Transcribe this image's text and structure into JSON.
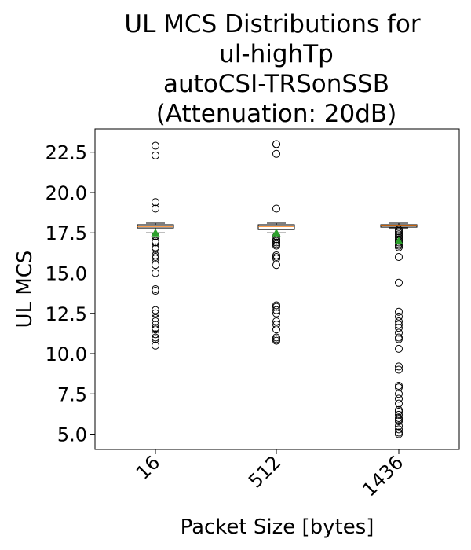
{
  "chart_data": {
    "type": "boxplot",
    "title_lines": [
      "UL MCS Distributions for",
      "ul-highTp",
      "autoCSI-TRSonSSB",
      "(Attenuation: 20dB)"
    ],
    "xlabel": "Packet Size [bytes]",
    "ylabel": "UL MCS",
    "ylim": [
      4.05,
      23.95
    ],
    "yticks": [
      5.0,
      7.5,
      10.0,
      12.5,
      15.0,
      17.5,
      20.0,
      22.5
    ],
    "ytick_labels": [
      "5.0",
      "7.5",
      "10.0",
      "12.5",
      "15.0",
      "17.5",
      "20.0",
      "22.5"
    ],
    "grid": false,
    "colors": {
      "median": "#ff7f0e",
      "mean": "#2ca02c",
      "box": "#000000"
    },
    "categories": [
      "16",
      "512",
      "1436"
    ],
    "boxes": [
      {
        "category": "16",
        "whisker_low": 17.5,
        "q1": 17.8,
        "median": 17.9,
        "q3": 18.0,
        "whisker_high": 18.1,
        "mean": 17.5,
        "outliers": [
          22.9,
          22.3,
          19.4,
          19.0,
          17.3,
          17.0,
          16.9,
          16.6,
          16.5,
          16.1,
          16.0,
          15.9,
          15.5,
          15.0,
          14.0,
          13.9,
          12.7,
          12.5,
          12.2,
          12.0,
          11.8,
          11.6,
          11.5,
          11.2,
          11.0,
          10.9,
          10.5
        ]
      },
      {
        "category": "512",
        "whisker_low": 17.5,
        "q1": 17.7,
        "median": 17.9,
        "q3": 18.0,
        "whisker_high": 18.1,
        "mean": 17.5,
        "outliers": [
          23.0,
          23.0,
          22.4,
          19.0,
          17.3,
          17.1,
          17.0,
          16.9,
          16.8,
          16.7,
          16.1,
          16.0,
          15.9,
          15.5,
          13.0,
          12.9,
          12.7,
          12.5,
          12.0,
          11.8,
          11.5,
          11.0,
          10.9,
          10.8
        ]
      },
      {
        "category": "1436",
        "whisker_low": 17.8,
        "q1": 17.85,
        "median": 17.95,
        "q3": 18.0,
        "whisker_high": 18.1,
        "mean": 17.0,
        "outliers": [
          17.7,
          17.6,
          17.5,
          17.4,
          17.3,
          17.2,
          17.1,
          17.0,
          16.9,
          16.8,
          16.7,
          16.6,
          16.0,
          14.4,
          12.6,
          12.3,
          12.0,
          11.8,
          11.6,
          11.3,
          11.0,
          10.9,
          10.3,
          9.2,
          9.0,
          8.0,
          7.9,
          7.5,
          7.2,
          6.9,
          6.5,
          6.4,
          6.2,
          6.0,
          5.9,
          5.8,
          5.5,
          5.3,
          5.1,
          5.0
        ]
      }
    ]
  }
}
